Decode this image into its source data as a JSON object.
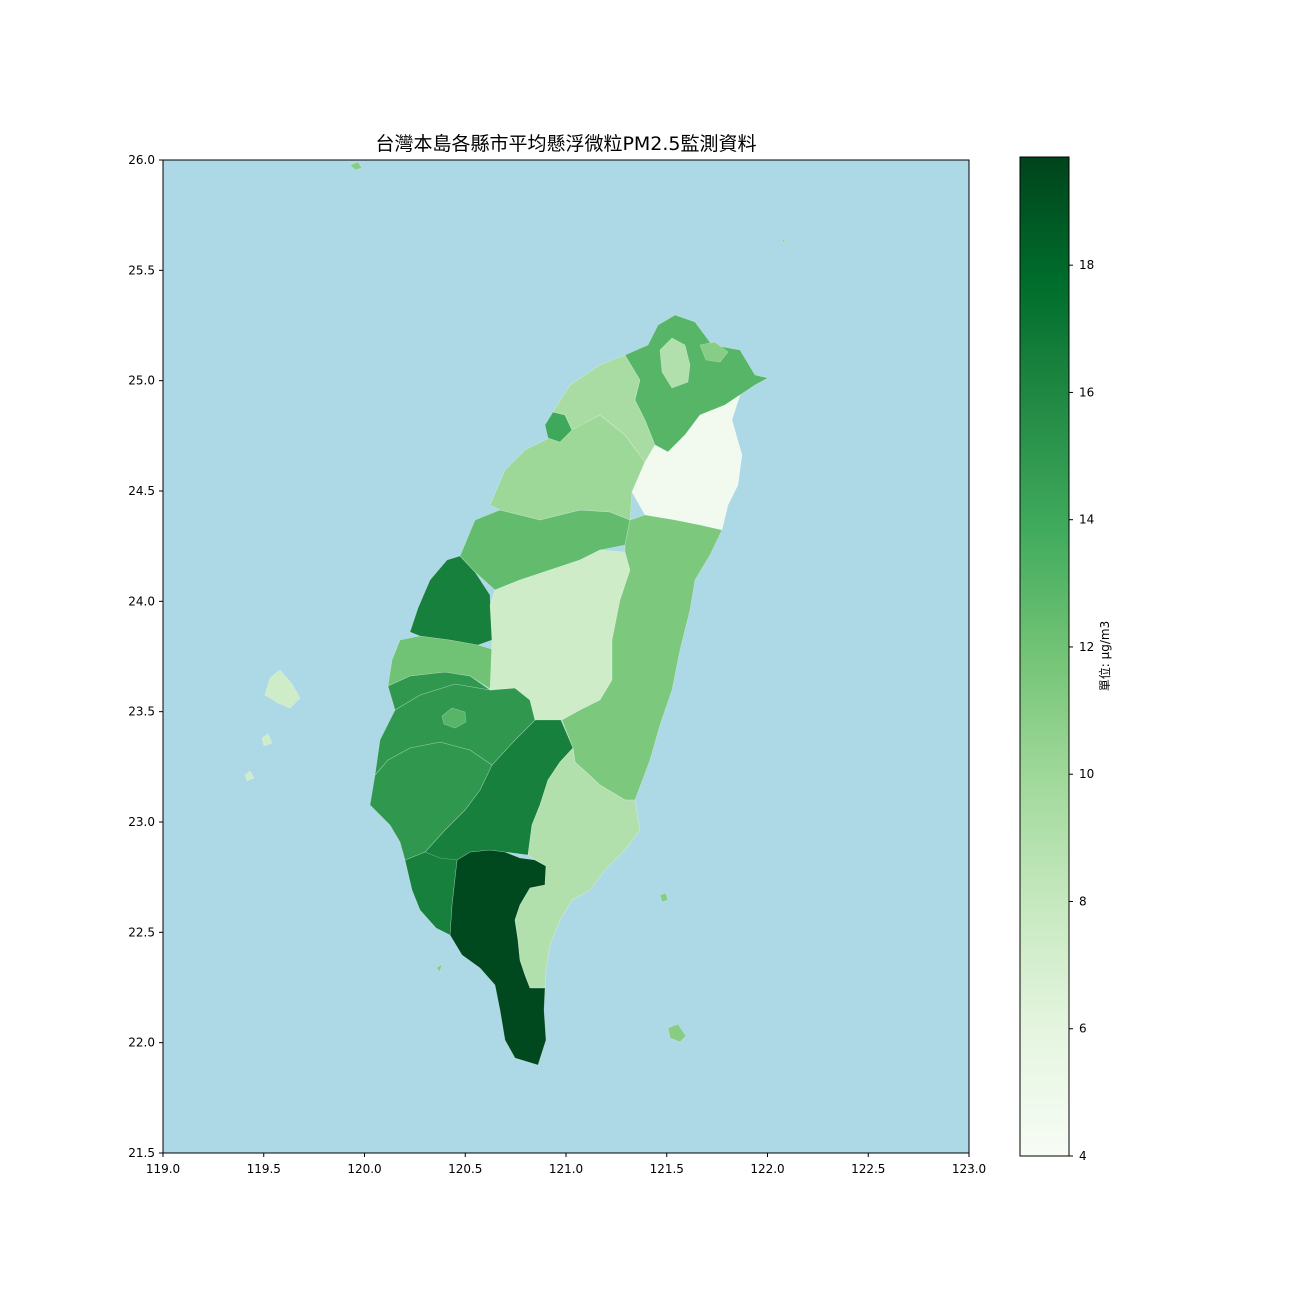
{
  "chart_data": {
    "type": "choropleth",
    "title": "台灣本島各縣市平均懸浮微粒PM2.5監測資料",
    "xlim": [
      119.0,
      123.0
    ],
    "ylim": [
      21.5,
      26.0
    ],
    "xticks": [
      "119.0",
      "119.5",
      "120.0",
      "120.5",
      "121.0",
      "121.5",
      "122.0",
      "122.5",
      "123.0"
    ],
    "yticks": [
      "21.5",
      "22.0",
      "22.5",
      "23.0",
      "23.5",
      "24.0",
      "24.5",
      "25.0",
      "25.5",
      "26.0"
    ],
    "ocean_color": "#add8e6",
    "colormap": "Greens",
    "colorbar": {
      "label": "單位: µg/m3",
      "min": 4,
      "max": 19.7,
      "ticks": [
        "4",
        "6",
        "8",
        "10",
        "12",
        "14",
        "16",
        "18"
      ]
    },
    "regions": [
      {
        "name": "基隆市",
        "value": 11.0
      },
      {
        "name": "臺北市",
        "value": 9.0
      },
      {
        "name": "新北市",
        "value": 13.0
      },
      {
        "name": "桃園市",
        "value": 9.5
      },
      {
        "name": "新竹市",
        "value": 14.0
      },
      {
        "name": "新竹縣",
        "value": 10.0
      },
      {
        "name": "苗栗縣",
        "value": 12.5
      },
      {
        "name": "臺中市",
        "value": 16.5
      },
      {
        "name": "彰化縣",
        "value": 12.0
      },
      {
        "name": "南投縣",
        "value": 7.5
      },
      {
        "name": "雲林縣",
        "value": 15.0
      },
      {
        "name": "嘉義市",
        "value": 13.0
      },
      {
        "name": "嘉義縣",
        "value": 15.0
      },
      {
        "name": "臺南市",
        "value": 15.0
      },
      {
        "name": "高雄市",
        "value": 16.5
      },
      {
        "name": "屏東縣",
        "value": 19.5
      },
      {
        "name": "宜蘭縣",
        "value": 4.5
      },
      {
        "name": "花蓮縣",
        "value": 11.5
      },
      {
        "name": "臺東縣",
        "value": 9.0
      },
      {
        "name": "澎湖縣",
        "value": 7.5
      },
      {
        "name": "離島",
        "value": 11.0
      }
    ]
  }
}
